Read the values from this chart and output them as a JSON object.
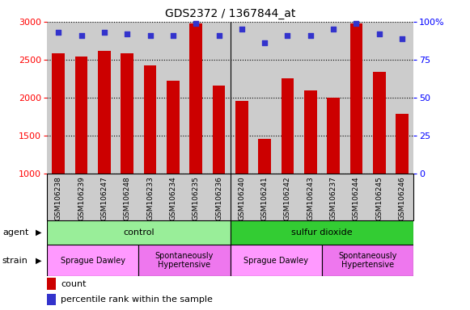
{
  "title": "GDS2372 / 1367844_at",
  "samples": [
    "GSM106238",
    "GSM106239",
    "GSM106247",
    "GSM106248",
    "GSM106233",
    "GSM106234",
    "GSM106235",
    "GSM106236",
    "GSM106240",
    "GSM106241",
    "GSM106242",
    "GSM106243",
    "GSM106237",
    "GSM106244",
    "GSM106245",
    "GSM106246"
  ],
  "counts": [
    2580,
    2545,
    2620,
    2580,
    2420,
    2220,
    2980,
    2160,
    1960,
    1460,
    2250,
    2100,
    2000,
    2980,
    2340,
    1790
  ],
  "percentile_ranks": [
    93,
    91,
    93,
    92,
    91,
    91,
    99,
    91,
    95,
    86,
    91,
    91,
    95,
    99,
    92,
    89
  ],
  "bar_color": "#CC0000",
  "dot_color": "#3333CC",
  "ylim_left": [
    1000,
    3000
  ],
  "ylim_right": [
    0,
    100
  ],
  "yticks_left": [
    1000,
    1500,
    2000,
    2500,
    3000
  ],
  "yticks_right": [
    0,
    25,
    50,
    75,
    100
  ],
  "agent_groups": [
    {
      "label": "control",
      "start": 0,
      "end": 8,
      "color": "#99EE99"
    },
    {
      "label": "sulfur dioxide",
      "start": 8,
      "end": 16,
      "color": "#33CC33"
    }
  ],
  "strain_groups": [
    {
      "label": "Sprague Dawley",
      "start": 0,
      "end": 4,
      "color": "#FF99FF"
    },
    {
      "label": "Spontaneously\nHypertensive",
      "start": 4,
      "end": 8,
      "color": "#EE77EE"
    },
    {
      "label": "Sprague Dawley",
      "start": 8,
      "end": 12,
      "color": "#FF99FF"
    },
    {
      "label": "Spontaneously\nHypertensive",
      "start": 12,
      "end": 16,
      "color": "#EE77EE"
    }
  ],
  "background_color": "#CCCCCC",
  "sep_positions": [
    7.5
  ]
}
